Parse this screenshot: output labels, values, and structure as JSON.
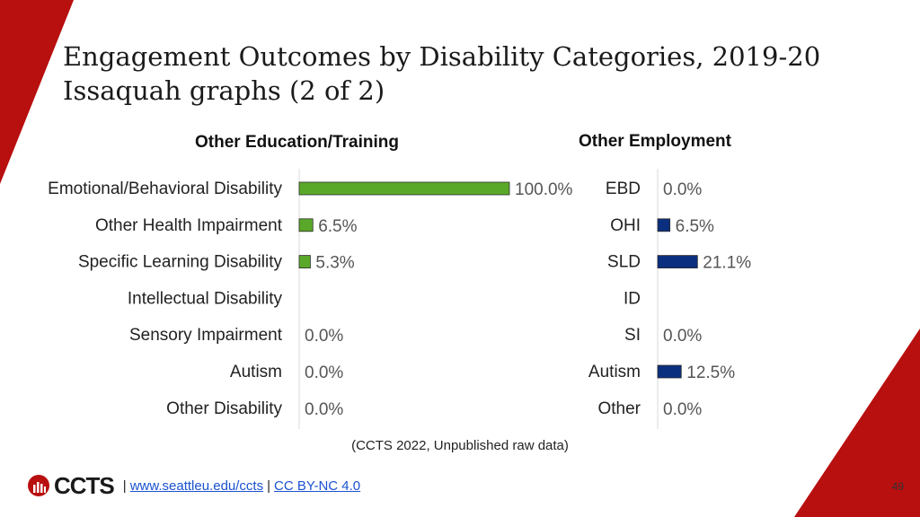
{
  "slide": {
    "title_line1": "Engagement Outcomes by Disability Categories, 2019-20",
    "title_line2": "Issaquah graphs (2 of 2)",
    "source_note": "(CCTS 2022, Unpublished raw data)",
    "footer": {
      "logo_text": "CCTS",
      "pipe_1": "|",
      "link_1": "www.seattleu.edu/ccts",
      "pipe_2": "|",
      "link_2": "CC BY-NC 4.0"
    },
    "page_number": "49",
    "colors": {
      "accent_red": "#b80f0f",
      "bar_green": "#5aa829",
      "bar_navy": "#0b2f7f"
    },
    "icons": [
      "ccts-logo-icon"
    ]
  },
  "chart_data": [
    {
      "type": "bar",
      "orientation": "horizontal",
      "title": "Other Education/Training",
      "categories": [
        "Emotional/Behavioral Disability",
        "Other Health Impairment",
        "Specific Learning Disability",
        "Intellectual Disability",
        "Sensory Impairment",
        "Autism",
        "Other Disability"
      ],
      "values": [
        100.0,
        6.5,
        5.3,
        null,
        0.0,
        0.0,
        0.0
      ],
      "value_labels": [
        "100.0%",
        "6.5%",
        "5.3%",
        "",
        "0.0%",
        "0.0%",
        "0.0%"
      ],
      "xlim": [
        0,
        100
      ],
      "unit": "%",
      "color": "#5aa829",
      "grid": false,
      "legend": "none"
    },
    {
      "type": "bar",
      "orientation": "horizontal",
      "title": "Other Employment",
      "categories": [
        "EBD",
        "OHI",
        "SLD",
        "ID",
        "SI",
        "Autism",
        "Other"
      ],
      "values": [
        0.0,
        6.5,
        21.1,
        null,
        0.0,
        12.5,
        0.0
      ],
      "value_labels": [
        "0.0%",
        "6.5%",
        "21.1%",
        "",
        "0.0%",
        "12.5%",
        "0.0%"
      ],
      "xlim": [
        0,
        100
      ],
      "unit": "%",
      "color": "#0b2f7f",
      "grid": false,
      "legend": "none"
    }
  ]
}
